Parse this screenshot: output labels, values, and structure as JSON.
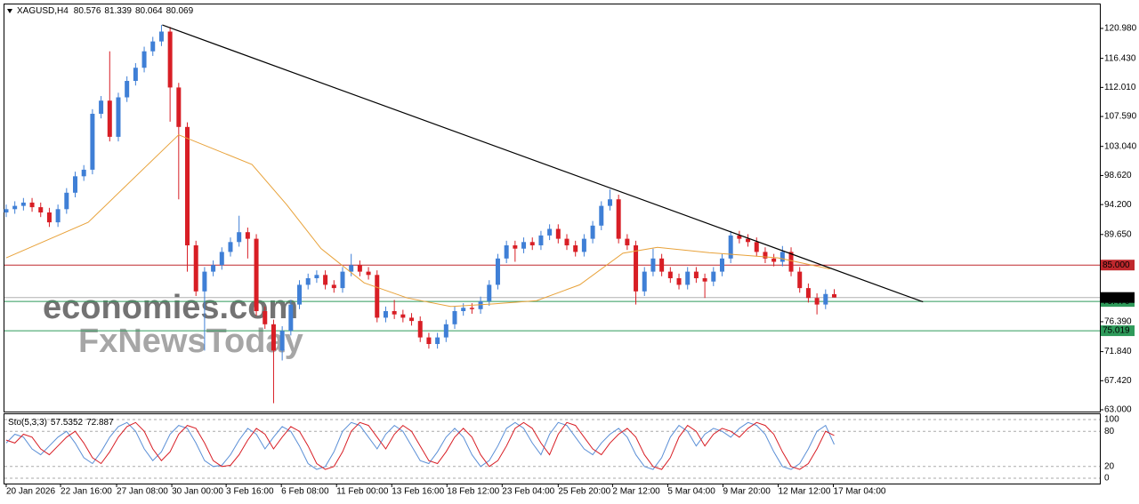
{
  "chart_data": {
    "type": "candlestick",
    "symbol": "XAGUSD,H4",
    "ylim": [
      62.73,
      124.76
    ],
    "yticks": [
      {
        "value": 120.98,
        "label": "120.980"
      },
      {
        "value": 116.43,
        "label": "116.430"
      },
      {
        "value": 112.01,
        "label": "112.010"
      },
      {
        "value": 107.59,
        "label": "107.590"
      },
      {
        "value": 103.04,
        "label": "103.040"
      },
      {
        "value": 98.62,
        "label": "98.620"
      },
      {
        "value": 94.2,
        "label": "94.200"
      },
      {
        "value": 89.65,
        "label": "89.650"
      },
      {
        "value": 76.39,
        "label": "76.390"
      },
      {
        "value": 71.84,
        "label": "71.840"
      },
      {
        "value": 67.42,
        "label": "67.420"
      },
      {
        "value": 63,
        "label": "63.000"
      }
    ],
    "xlim": [
      -0.1,
      126.9
    ],
    "xticks": [
      {
        "value": 0,
        "label": "20 Jan 2026"
      },
      {
        "value": 6.3,
        "label": "22 Jan 16:00"
      },
      {
        "value": 12.8,
        "label": "27 Jan 08:00"
      },
      {
        "value": 19.2,
        "label": "30 Jan 00:00"
      },
      {
        "value": 25.5,
        "label": "3 Feb 16:00"
      },
      {
        "value": 31.9,
        "label": "6 Feb 08:00"
      },
      {
        "value": 38.3,
        "label": "11 Feb 00:00"
      },
      {
        "value": 44.7,
        "label": "13 Feb 16:00"
      },
      {
        "value": 51.1,
        "label": "18 Feb 12:00"
      },
      {
        "value": 57.5,
        "label": "23 Feb 04:00"
      },
      {
        "value": 64,
        "label": "25 Feb 20:00"
      },
      {
        "value": 70.3,
        "label": "2 Mar 12:00"
      },
      {
        "value": 76.7,
        "label": "5 Mar 04:00"
      },
      {
        "value": 83.1,
        "label": "9 Mar 20:00"
      },
      {
        "value": 89.5,
        "label": "12 Mar 12:00"
      },
      {
        "value": 95.9,
        "label": "17 Mar 04:00"
      }
    ],
    "up_color": "#3f7fd6",
    "down_color": "#d81e25",
    "ohlc": [
      [
        93,
        94.2,
        92.3,
        93.5
      ],
      [
        93.5,
        94.7,
        92.8,
        94
      ],
      [
        94,
        95.2,
        93.3,
        94.5
      ],
      [
        94.5,
        95.2,
        93.1,
        93.8
      ],
      [
        93.8,
        94.5,
        92.3,
        93
      ],
      [
        93,
        93.7,
        90.8,
        91.5
      ],
      [
        91.5,
        94.2,
        90.8,
        93.5
      ],
      [
        93.5,
        96.7,
        92.8,
        96
      ],
      [
        96,
        99.2,
        95.3,
        98.5
      ],
      [
        98.5,
        100.2,
        97.8,
        99.5
      ],
      [
        99.5,
        108.7,
        98.8,
        108
      ],
      [
        108,
        110.7,
        107.3,
        110
      ],
      [
        110,
        117.5,
        103.8,
        104.5
      ],
      [
        104.5,
        111.2,
        103.8,
        110.5
      ],
      [
        110.5,
        113.7,
        109.8,
        113
      ],
      [
        113,
        115.7,
        112.3,
        115
      ],
      [
        115,
        118.2,
        114.3,
        117.5
      ],
      [
        117.5,
        119.7,
        116.8,
        119
      ],
      [
        119,
        121.5,
        118.3,
        120.5
      ],
      [
        120.5,
        121.2,
        106.8,
        112
      ],
      [
        112,
        112.7,
        95,
        106
      ],
      [
        106,
        106.7,
        84,
        88
      ],
      [
        88,
        88.7,
        80.3,
        81
      ],
      [
        81,
        84.7,
        72,
        84
      ],
      [
        84,
        85.7,
        83.3,
        85
      ],
      [
        85,
        87.7,
        84.3,
        87
      ],
      [
        87,
        89.2,
        86.3,
        88.5
      ],
      [
        88.5,
        92.5,
        87.8,
        90
      ],
      [
        90,
        90.7,
        86,
        89
      ],
      [
        89,
        89.7,
        77.3,
        78
      ],
      [
        78,
        78.7,
        75.3,
        76
      ],
      [
        76,
        76.7,
        64,
        72
      ],
      [
        72,
        75.7,
        70.5,
        75
      ],
      [
        75,
        79.7,
        74.3,
        79
      ],
      [
        79,
        82.7,
        78.3,
        82
      ],
      [
        82,
        83.7,
        81.3,
        83
      ],
      [
        83,
        84.2,
        82.3,
        83.5
      ],
      [
        83.5,
        84.2,
        81.3,
        82
      ],
      [
        82,
        82.7,
        80.8,
        81.5
      ],
      [
        81.5,
        84.7,
        80.8,
        84
      ],
      [
        84,
        86.7,
        83.3,
        85
      ],
      [
        85,
        85.7,
        83.3,
        84
      ],
      [
        84,
        84.7,
        82.8,
        83.5
      ],
      [
        83.5,
        84.2,
        76.3,
        77
      ],
      [
        77,
        78.7,
        76.3,
        78
      ],
      [
        78,
        79.7,
        76.8,
        77.5
      ],
      [
        77.5,
        78.2,
        76.3,
        77
      ],
      [
        77,
        77.7,
        75.8,
        76.5
      ],
      [
        76.5,
        77.2,
        73.3,
        74
      ],
      [
        74,
        74.7,
        72.3,
        73
      ],
      [
        73,
        74.7,
        72.3,
        74
      ],
      [
        74,
        76.7,
        73.3,
        76
      ],
      [
        76,
        78.7,
        75.3,
        78
      ],
      [
        78,
        79.2,
        77.3,
        78.5
      ],
      [
        78.5,
        79.2,
        77.6,
        78.3
      ],
      [
        78.3,
        80.2,
        77.6,
        79.5
      ],
      [
        79.5,
        82.7,
        78.8,
        82
      ],
      [
        82,
        86.7,
        81.3,
        86
      ],
      [
        86,
        88.7,
        85.3,
        88
      ],
      [
        88,
        88.7,
        85.5,
        87.5
      ],
      [
        87.5,
        89.2,
        86.8,
        88.5
      ],
      [
        88.5,
        89.2,
        87.3,
        88
      ],
      [
        88,
        90.2,
        87.3,
        89.5
      ],
      [
        89.5,
        91.2,
        88.8,
        90.5
      ],
      [
        90.5,
        91.2,
        88.3,
        89
      ],
      [
        89,
        89.7,
        87.3,
        88
      ],
      [
        88,
        88.7,
        86.3,
        87
      ],
      [
        87,
        89.7,
        86.3,
        89
      ],
      [
        89,
        91.7,
        88.3,
        91
      ],
      [
        91,
        94.7,
        90.3,
        94
      ],
      [
        94,
        96.5,
        93.3,
        95
      ],
      [
        95,
        95.7,
        88.3,
        89
      ],
      [
        89,
        89.7,
        87.3,
        88
      ],
      [
        88,
        88.7,
        79,
        81
      ],
      [
        81,
        84.7,
        80.3,
        84
      ],
      [
        84,
        87.5,
        83.3,
        86
      ],
      [
        86,
        86.7,
        83.3,
        84
      ],
      [
        84,
        84.7,
        82.3,
        83
      ],
      [
        83,
        83.7,
        81.3,
        82
      ],
      [
        82,
        84.7,
        81.3,
        84
      ],
      [
        84,
        84.7,
        82.3,
        83
      ],
      [
        83,
        83.7,
        80,
        82.5
      ],
      [
        82.5,
        84.7,
        81.8,
        84
      ],
      [
        84,
        86.7,
        83.3,
        86
      ],
      [
        86,
        90.2,
        85.3,
        89.5
      ],
      [
        89.5,
        90.2,
        88.3,
        89
      ],
      [
        89,
        89.7,
        87.8,
        88.5
      ],
      [
        88.5,
        89.2,
        86.3,
        87
      ],
      [
        87,
        87.7,
        85.3,
        86
      ],
      [
        86,
        86.7,
        84.8,
        85.5
      ],
      [
        85.5,
        87.9,
        84.8,
        87
      ],
      [
        87,
        87.7,
        83.3,
        84
      ],
      [
        84,
        84.7,
        80.8,
        81.5
      ],
      [
        81.5,
        82.2,
        79.3,
        80
      ],
      [
        80,
        80.7,
        77.5,
        79
      ],
      [
        79,
        81.3,
        78.3,
        80.6
      ],
      [
        80.576,
        81.339,
        80.064,
        80.069
      ]
    ],
    "moving_average": {
      "color": "#e8a23a",
      "x": [
        0,
        9.5,
        20,
        28.5,
        32.5,
        36.5,
        41.5,
        46.5,
        51.5,
        56.5,
        61.5,
        66.5,
        71.5,
        75.5,
        81.5,
        85.5,
        89.5,
        95.5
      ],
      "values": [
        86.1,
        91.5,
        104.8,
        100.3,
        94.2,
        87.5,
        82.3,
        80,
        78.7,
        79.1,
        79.6,
        82,
        86.8,
        87.7,
        86.9,
        86.5,
        86.1,
        84.4
      ]
    },
    "trendline": {
      "color": "#000000",
      "x": [
        18.1,
        106.3
      ],
      "values": [
        121.5,
        79.4
      ]
    },
    "levels": [
      {
        "value": 85,
        "label": "85.000",
        "color": "#c0282d"
      },
      {
        "value": 79.47,
        "label": "79.470",
        "color": "#2e9a5a"
      },
      {
        "value": 75.019,
        "label": "75.019",
        "color": "#2e9a5a"
      }
    ],
    "watermarks": [
      "economies.com",
      "FxNewsToday"
    ],
    "stochastic": {
      "name": "Sto(5,3,3)",
      "ylim": [
        -9.1,
        109.1
      ],
      "yticks": [
        0,
        20,
        80,
        100
      ],
      "series": [
        {
          "name": "main",
          "color": "#5b8fd6",
          "values": [
            60,
            75,
            70,
            50,
            40,
            55,
            70,
            80,
            60,
            35,
            25,
            45,
            70,
            88,
            95,
            80,
            50,
            30,
            45,
            75,
            90,
            85,
            60,
            30,
            20,
            22,
            40,
            65,
            85,
            75,
            50,
            70,
            88,
            80,
            55,
            25,
            15,
            20,
            45,
            80,
            95,
            90,
            70,
            50,
            75,
            90,
            80,
            55,
            30,
            25,
            45,
            70,
            85,
            70,
            40,
            20,
            30,
            55,
            85,
            95,
            85,
            60,
            40,
            75,
            95,
            90,
            70,
            50,
            40,
            60,
            75,
            85,
            70,
            40,
            20,
            15,
            35,
            70,
            90,
            80,
            55,
            75,
            85,
            80,
            70,
            85,
            95,
            90,
            75,
            45,
            20,
            15,
            25,
            50,
            80,
            90,
            57.5352
          ]
        },
        {
          "name": "signal",
          "color": "#d81e25",
          "values": [
            65,
            60,
            75,
            70,
            50,
            40,
            55,
            70,
            80,
            60,
            35,
            25,
            45,
            70,
            88,
            95,
            80,
            50,
            30,
            45,
            75,
            90,
            85,
            60,
            30,
            20,
            22,
            40,
            65,
            85,
            75,
            50,
            70,
            88,
            80,
            55,
            25,
            15,
            20,
            45,
            80,
            95,
            90,
            70,
            50,
            75,
            90,
            80,
            55,
            30,
            25,
            45,
            70,
            85,
            70,
            40,
            20,
            30,
            55,
            85,
            95,
            85,
            60,
            40,
            75,
            95,
            90,
            70,
            50,
            40,
            60,
            75,
            85,
            70,
            40,
            20,
            15,
            35,
            70,
            90,
            80,
            55,
            75,
            85,
            80,
            70,
            85,
            95,
            90,
            75,
            45,
            20,
            15,
            25,
            50,
            80,
            72.887
          ]
        }
      ]
    }
  }
}
